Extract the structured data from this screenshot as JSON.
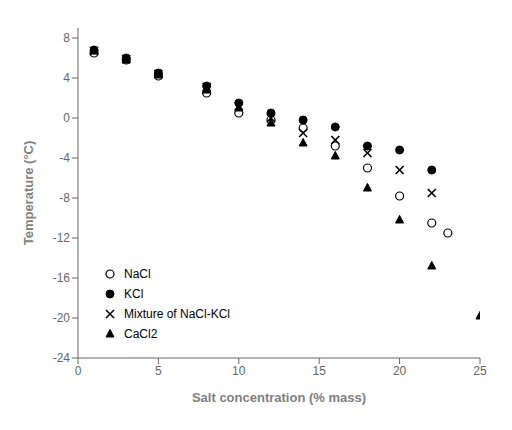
{
  "chart_data": {
    "type": "scatter",
    "xlabel": "Salt concentration (% mass)",
    "ylabel": "Temperature (°C)",
    "xlim": [
      0,
      25
    ],
    "ylim": [
      -24,
      9
    ],
    "xticks": [
      0,
      5,
      10,
      15,
      20,
      25
    ],
    "yticks": [
      8,
      4,
      0,
      -4,
      -8,
      -12,
      -16,
      -20,
      -24
    ],
    "grid": false,
    "legend": "lower left",
    "series": [
      {
        "name": "NaCl",
        "color": "#000000",
        "marker": "open_circle",
        "x": [
          1,
          3,
          5,
          8,
          10,
          12,
          14,
          16,
          18,
          20,
          22,
          23
        ],
        "values": [
          6.5,
          5.8,
          4.2,
          2.5,
          0.5,
          -0.2,
          -1.0,
          -2.8,
          -5.0,
          -7.8,
          -10.5,
          -11.5
        ]
      },
      {
        "name": "KCl",
        "color": "#000000",
        "marker": "circle",
        "x": [
          1,
          3,
          5,
          8,
          10,
          12,
          14,
          16,
          18,
          20,
          22
        ],
        "values": [
          6.8,
          6.0,
          4.5,
          3.2,
          1.5,
          0.5,
          -0.2,
          -0.9,
          -2.8,
          -3.2,
          -5.2
        ]
      },
      {
        "name": "Mixture of NaCl-KCl",
        "color": "#000000",
        "marker": "x",
        "x": [
          1,
          3,
          5,
          8,
          10,
          12,
          14,
          16,
          18,
          20,
          22
        ],
        "values": [
          6.7,
          5.9,
          4.4,
          3.1,
          1.2,
          0.0,
          -1.5,
          -2.2,
          -3.5,
          -5.2,
          -7.5
        ]
      },
      {
        "name": "CaCl2",
        "color": "#000000",
        "marker": "triangle",
        "x": [
          1,
          3,
          5,
          8,
          10,
          12,
          14,
          16,
          18,
          20,
          22,
          25
        ],
        "values": [
          6.7,
          5.8,
          4.3,
          2.8,
          1.0,
          -0.5,
          -2.5,
          -3.8,
          -7.0,
          -10.2,
          -14.8,
          -19.8
        ]
      }
    ]
  }
}
